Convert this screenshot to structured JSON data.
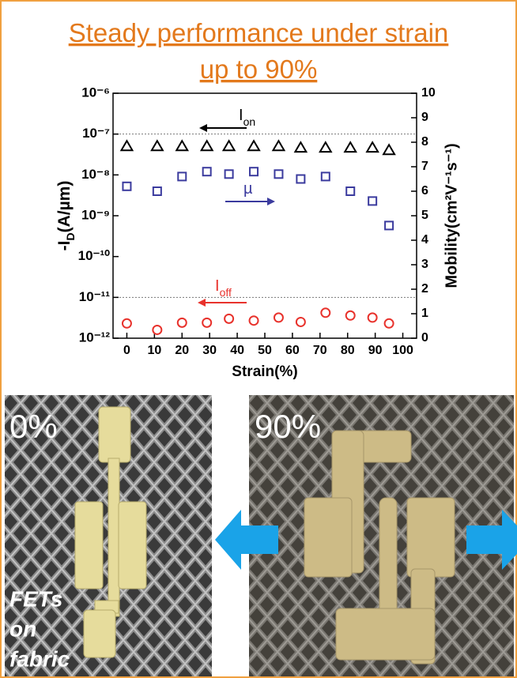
{
  "chart_data": {
    "type": "scatter",
    "title": "Steady performance under strain up to 90%",
    "xlabel": "Strain(%)",
    "ylabel": [
      "-I",
      "D",
      "(A/µm)"
    ],
    "y2label": "Mobility(cm²V⁻¹s⁻¹)",
    "log_y": true,
    "x": [
      0,
      11,
      20,
      29,
      37,
      46,
      55,
      63,
      72,
      81,
      89,
      95
    ],
    "series": [
      {
        "name": [
          "I",
          "on"
        ],
        "marker": "triangle",
        "color": "#000000",
        "axis": "y",
        "values": [
          5e-08,
          5e-08,
          5e-08,
          5e-08,
          5e-08,
          5e-08,
          5e-08,
          4.6e-08,
          4.6e-08,
          4.6e-08,
          4.6e-08,
          4e-08
        ]
      },
      {
        "name": "µ",
        "marker": "square",
        "color": "#3b3b9e",
        "axis": "y2",
        "values": [
          6.2,
          6.0,
          6.6,
          6.8,
          6.7,
          6.8,
          6.7,
          6.5,
          6.6,
          6.0,
          5.6,
          4.6
        ]
      },
      {
        "name": [
          "I",
          "off"
        ],
        "marker": "circle",
        "color": "#e8322c",
        "axis": "y",
        "values": [
          2.3e-12,
          1.6e-12,
          2.4e-12,
          2.4e-12,
          3e-12,
          2.7e-12,
          3.2e-12,
          2.5e-12,
          4.2e-12,
          3.6e-12,
          3.2e-12,
          2.3e-12
        ]
      }
    ],
    "xlim": [
      -5,
      105
    ],
    "xticks": [
      0,
      10,
      20,
      30,
      40,
      50,
      60,
      70,
      80,
      90,
      100
    ],
    "ylim": [
      1e-12,
      1e-06
    ],
    "yticks": [
      {
        "value": 1e-12,
        "label": "10⁻¹²"
      },
      {
        "value": 1e-11,
        "label": "10⁻¹¹"
      },
      {
        "value": 1e-10,
        "label": "10⁻¹⁰"
      },
      {
        "value": 1e-09,
        "label": "10⁻⁹"
      },
      {
        "value": 1e-08,
        "label": "10⁻⁸"
      },
      {
        "value": 1e-07,
        "label": "10⁻⁷"
      },
      {
        "value": 1e-06,
        "label": "10⁻⁶"
      }
    ],
    "y2lim": [
      0,
      10
    ],
    "y2ticks": [
      0,
      1,
      2,
      3,
      4,
      5,
      6,
      7,
      8,
      9,
      10
    ],
    "gridlines": [
      1e-07,
      1e-11
    ]
  },
  "photos": [
    {
      "label": "0%",
      "caption": [
        "FETs",
        "on",
        "fabric"
      ]
    },
    {
      "label": "90%"
    }
  ]
}
